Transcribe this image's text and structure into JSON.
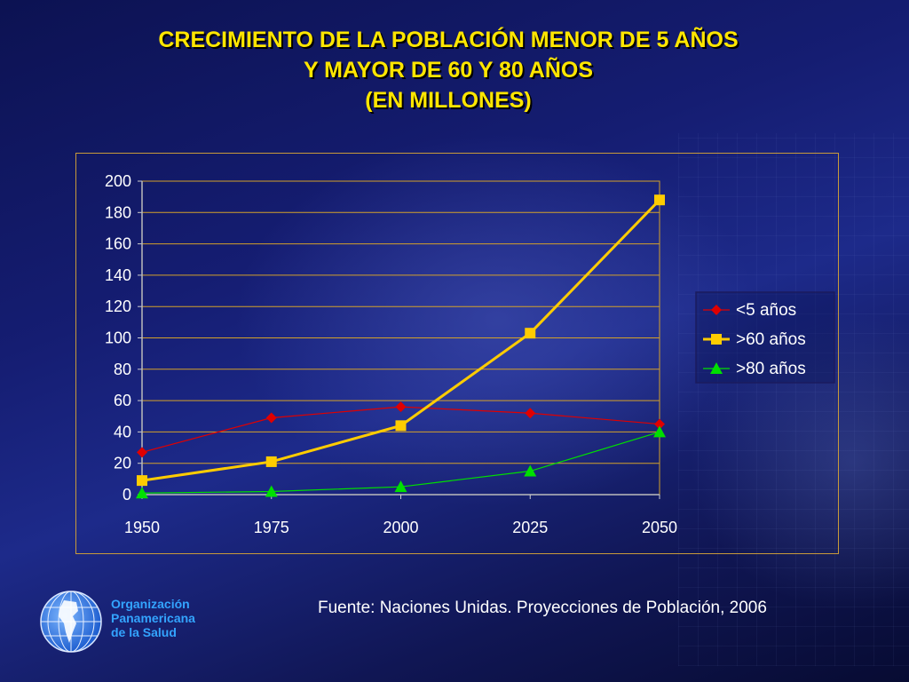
{
  "title": {
    "line1": "CRECIMIENTO DE LA POBLACIÓN MENOR DE 5 AÑOS",
    "line2": "Y MAYOR DE 60 Y 80 AÑOS",
    "line3": "(EN MILLONES)"
  },
  "footnote": "Fuente: Naciones Unidas. Proyecciones de Población, 2006",
  "logo": {
    "line1": "Organización",
    "line2": "Panamericana",
    "line3": "de la Salud"
  },
  "colors": {
    "title": "#ffe600",
    "series_lt5": "#e00000",
    "series_gt60": "#ffcc00",
    "series_gt80": "#00e000",
    "gridline": "#d4a12a",
    "logo_text": "#33a4ff"
  },
  "chart_data": {
    "type": "line",
    "title": "CRECIMIENTO DE LA POBLACIÓN MENOR DE 5 AÑOS Y MAYOR DE 60 Y 80 AÑOS (EN MILLONES)",
    "categories": [
      "1950",
      "1975",
      "2000",
      "2025",
      "2050"
    ],
    "ylim": [
      0,
      200
    ],
    "yticks": [
      0,
      20,
      40,
      60,
      80,
      100,
      120,
      140,
      160,
      180,
      200
    ],
    "grid": "horizontal",
    "legend_position": "right",
    "series": [
      {
        "name": "<5 años",
        "values": [
          27,
          49,
          56,
          52,
          45
        ],
        "marker": "diamond",
        "color": "#e00000"
      },
      {
        "name": ">60 años",
        "values": [
          9,
          21,
          44,
          103,
          188
        ],
        "marker": "square",
        "color": "#ffcc00"
      },
      {
        "name": ">80 años",
        "values": [
          1,
          2,
          5,
          15,
          40
        ],
        "marker": "triangle",
        "color": "#00e000"
      }
    ]
  }
}
